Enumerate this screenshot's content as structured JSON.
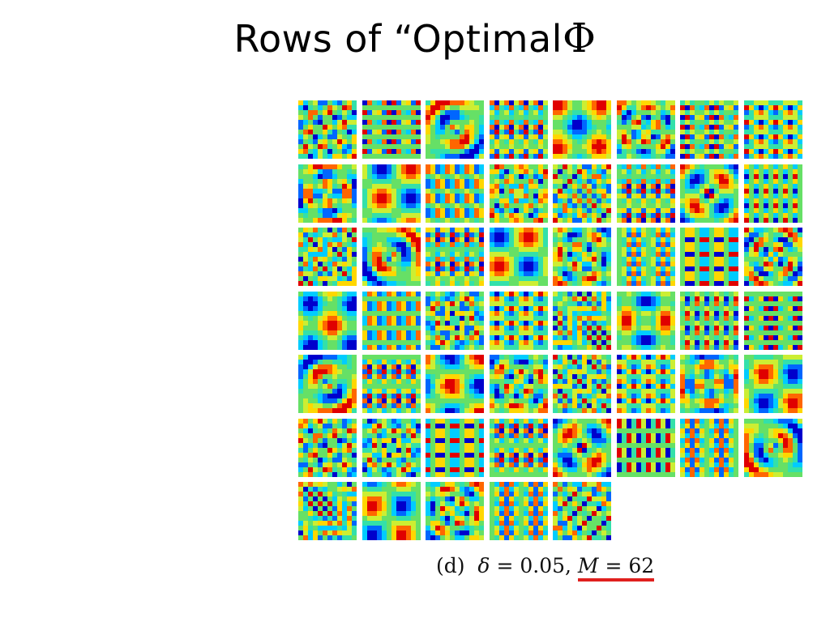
{
  "slide": {
    "title_prefix": "Rows of “Optimal",
    "title_symbol": "Φ"
  },
  "grid": {
    "rows": 7,
    "cols": 8,
    "tile_count": 53,
    "colormap": [
      "#0000cc",
      "#0066ff",
      "#00ccff",
      "#33e0aa",
      "#66e066",
      "#ccee33",
      "#ffd700",
      "#ff6600",
      "#e00000"
    ],
    "photo_tile": {
      "position": "row 7, column 6",
      "colors": {
        "background": "#b9b2a8",
        "hair": "#3b2e25",
        "skin": "#d9a88c",
        "shirt": "#3a3a3c",
        "glasses": "#222222"
      }
    }
  },
  "caption": {
    "label": "(d)",
    "delta_symbol": "δ",
    "equals": "=",
    "delta_value": "0.05,",
    "m_symbol": "M",
    "m_value": "62",
    "underline_color": "#e0201e"
  }
}
